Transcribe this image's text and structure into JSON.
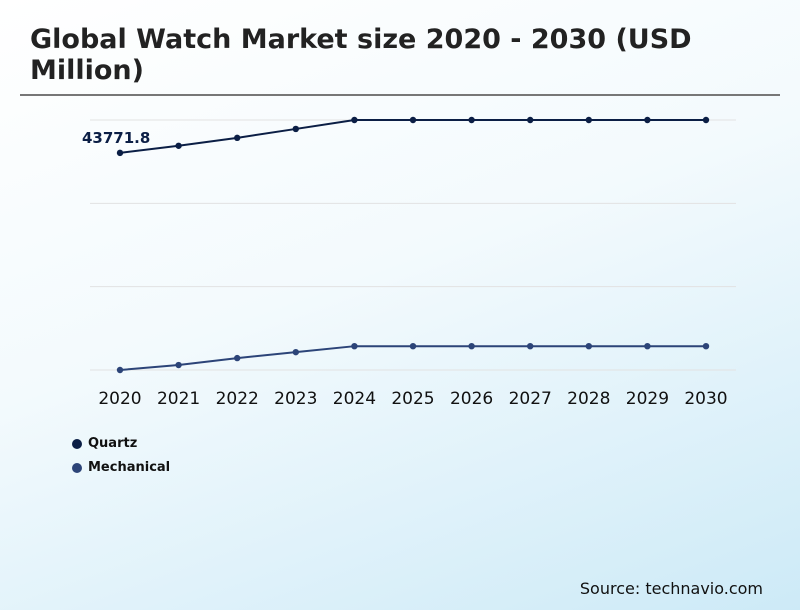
{
  "title": "Global Watch Market size 2020 - 2030 (USD Million)",
  "source": "Source: technavio.com",
  "chart_data": {
    "type": "line",
    "title": "Global Watch Market size 2020 - 2030 (USD Million)",
    "categories": [
      "2020",
      "2021",
      "2022",
      "2023",
      "2024",
      "2025",
      "2026",
      "2027",
      "2028",
      "2029",
      "2030"
    ],
    "series": [
      {
        "name": "Quartz",
        "color": "#0b1e45",
        "values": [
          43771.8,
          45200,
          46800,
          48600,
          50400,
          50400,
          50400,
          50400,
          50400,
          50400,
          50400
        ]
      },
      {
        "name": "Mechanical",
        "color": "#2c4478",
        "values": [
          0,
          1000,
          2400,
          3600,
          4800,
          4800,
          4800,
          4800,
          4800,
          4800,
          4800
        ]
      }
    ],
    "data_labels": [
      {
        "series": "Quartz",
        "category": "2020",
        "text": "43771.8"
      }
    ],
    "ylim": [
      0,
      50400
    ],
    "grid": true,
    "y_axis_labels": false,
    "legend": "bottom-left"
  }
}
